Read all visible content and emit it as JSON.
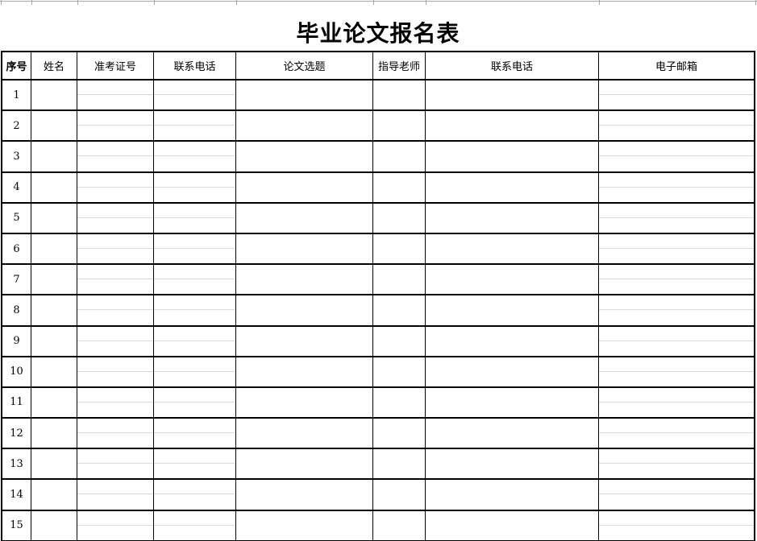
{
  "title": "毕业论文报名表",
  "table": {
    "header": [
      {
        "label": "序号",
        "bold": true
      },
      {
        "label": "姓名",
        "bold": false
      },
      {
        "label": "准考证号",
        "bold": false
      },
      {
        "label": "联系电话",
        "bold": false
      },
      {
        "label": "论文选题",
        "bold": false
      },
      {
        "label": "指导老师",
        "bold": false
      },
      {
        "label": "联系电话",
        "bold": false
      },
      {
        "label": "电子邮箱",
        "bold": false
      }
    ],
    "row_numbers": [
      "1",
      "2",
      "3",
      "4",
      "5",
      "6",
      "7",
      "8",
      "9",
      "10",
      "11",
      "12",
      "13",
      "14",
      "15"
    ],
    "empty_cell_value": ""
  },
  "colors": {
    "background": "#ffffff",
    "text": "#000000",
    "border": "#000000",
    "midline_gridline": "#d9d9d9",
    "top_gridline": "#a6a6a6"
  }
}
